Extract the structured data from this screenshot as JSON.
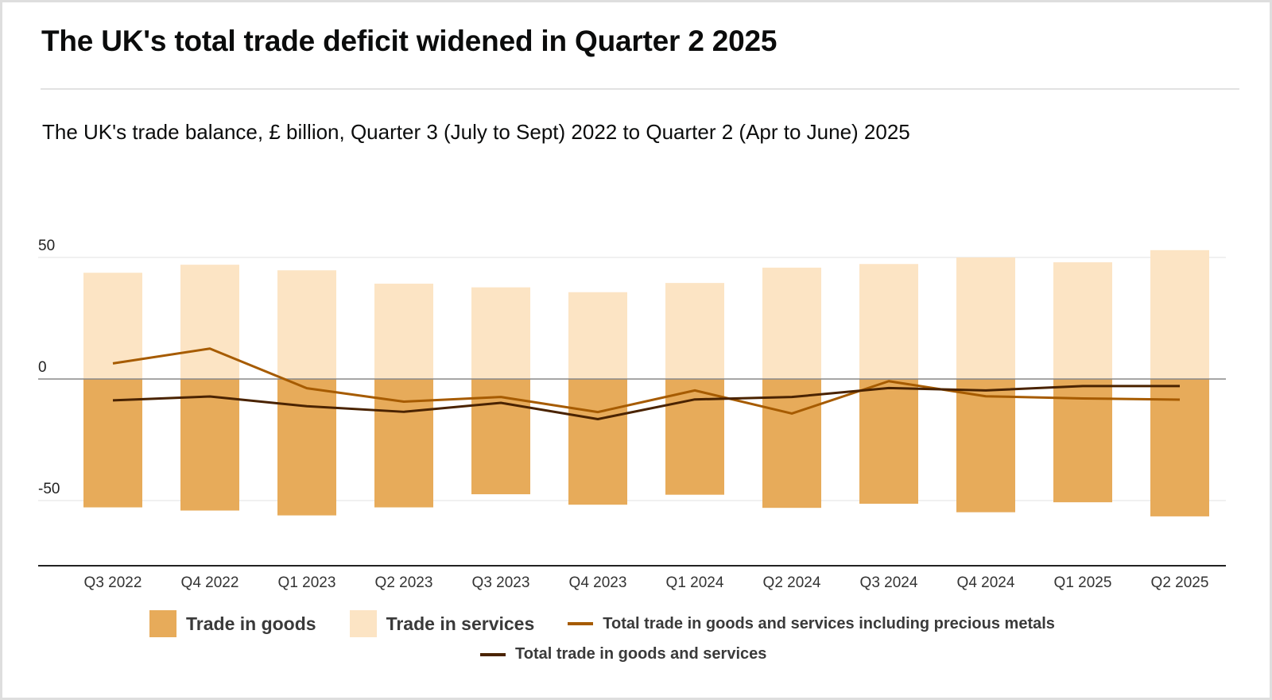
{
  "header": {
    "title": "The UK's total trade deficit widened in Quarter 2 2025",
    "subtitle": "The UK's trade balance, £ billion, Quarter 3 (July to Sept) 2022 to Quarter 2 (Apr to June) 2025"
  },
  "colors": {
    "goods": "#e7ab5a",
    "services": "#fce4c4",
    "precious_metals_line": "#a65b00",
    "total_line": "#4a2300",
    "zero_line": "#888888",
    "grid": "#ececec",
    "axis": "#222222"
  },
  "legend": {
    "goods": "Trade in goods",
    "services": "Trade in services",
    "precious": "Total trade in goods and services including precious metals",
    "total": "Total trade in goods and services"
  },
  "chart_data": {
    "type": "bar",
    "stacked": "diverging",
    "title": "The UK's total trade deficit widened in Quarter 2 2025",
    "subtitle": "The UK's trade balance, £ billion, Quarter 3 (July to Sept) 2022 to Quarter 2 (Apr to June) 2025",
    "xlabel": "",
    "ylabel": "£ billion",
    "ylim": [
      -77,
      60
    ],
    "yticks": [
      50,
      0,
      -50
    ],
    "ytick_labels": [
      "50",
      "0",
      "-50"
    ],
    "grid": true,
    "legend_position": "bottom",
    "categories": [
      "Q3 2022",
      "Q4 2022",
      "Q1 2023",
      "Q2 2023",
      "Q3 2023",
      "Q4 2023",
      "Q1 2024",
      "Q2 2024",
      "Q3 2024",
      "Q4 2024",
      "Q1 2025",
      "Q2 2025"
    ],
    "series": [
      {
        "name": "Trade in goods",
        "type": "bar",
        "values": [
          -52.8,
          -54.1,
          -56.1,
          -52.8,
          -47.4,
          -51.7,
          -47.6,
          -53.0,
          -51.3,
          -54.8,
          -50.7,
          -56.5
        ]
      },
      {
        "name": "Trade in services",
        "type": "bar",
        "values": [
          43.7,
          47.0,
          44.7,
          39.2,
          37.7,
          35.7,
          39.5,
          45.8,
          47.3,
          50.0,
          48.0,
          53.0
        ]
      },
      {
        "name": "Total trade in goods and services including precious metals",
        "type": "line",
        "values": [
          6.4,
          12.5,
          -3.8,
          -9.3,
          -7.4,
          -13.6,
          -4.7,
          -14.2,
          -0.9,
          -7.1,
          -8.0,
          -8.5
        ]
      },
      {
        "name": "Total trade in goods and services",
        "type": "line",
        "values": [
          -8.8,
          -7.2,
          -11.2,
          -13.5,
          -9.8,
          -16.5,
          -8.4,
          -7.4,
          -3.7,
          -4.7,
          -2.9,
          -2.9
        ]
      }
    ]
  }
}
